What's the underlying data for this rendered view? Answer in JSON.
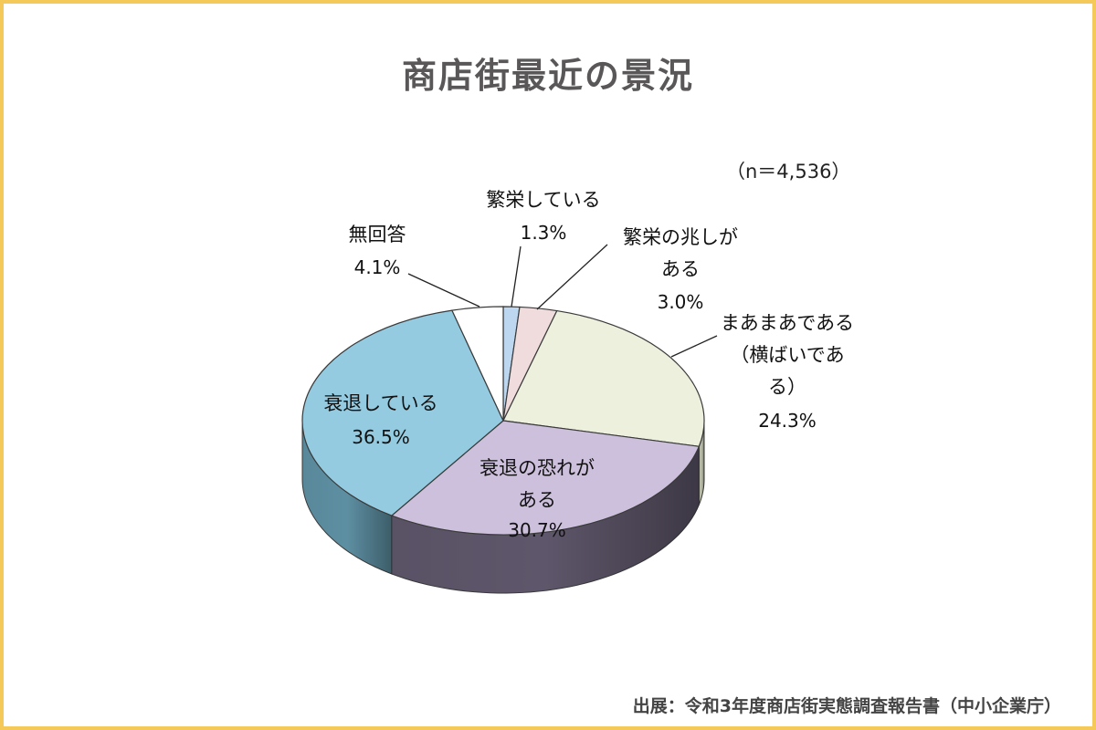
{
  "title": "商店街最近の景況",
  "sample_size": "（n＝4,536）",
  "source": "出展：令和3年度商店街実態調査報告書（中小企業庁）",
  "chart_data": {
    "type": "pie",
    "three_d": true,
    "start_angle_deg": 90,
    "direction": "clockwise",
    "slices": [
      {
        "label": "繁栄している",
        "label_lines": [
          "繁栄している"
        ],
        "value": 1.3,
        "value_label": "1.3%",
        "color": "#bcd7ef",
        "side_color": "#8fa9c2"
      },
      {
        "label": "繁栄の兆しがある",
        "label_lines": [
          "繁栄の兆しが",
          "ある"
        ],
        "value": 3.0,
        "value_label": "3.0%",
        "color": "#f0dcdc",
        "side_color": "#c2abab"
      },
      {
        "label": "まあまあである（横ばいである）",
        "label_lines": [
          "まあまあである",
          "（横ばいであ",
          "る）"
        ],
        "value": 24.3,
        "value_label": "24.3%",
        "color": "#ecf0dd",
        "side_color": "#b9bda8"
      },
      {
        "label": "衰退の恐れがある",
        "label_lines": [
          "衰退の恐れが",
          "ある"
        ],
        "value": 30.7,
        "value_label": "30.7%",
        "color": "#ccc0dc",
        "side_color": "#5e566a"
      },
      {
        "label": "衰退している",
        "label_lines": [
          "衰退している"
        ],
        "value": 36.5,
        "value_label": "36.5%",
        "color": "#94cbe0",
        "side_color": "#5d8fa2"
      },
      {
        "label": "無回答",
        "label_lines": [
          "無回答"
        ],
        "value": 4.1,
        "value_label": "4.1%",
        "color": "#ffffff",
        "side_color": "#d6d6d6"
      }
    ]
  }
}
